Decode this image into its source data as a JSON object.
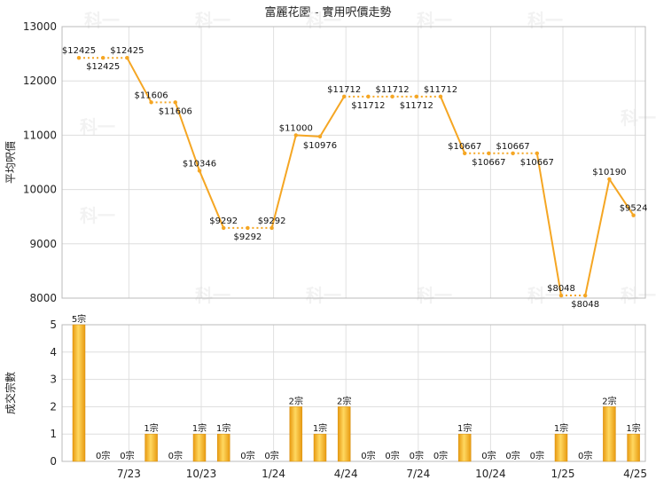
{
  "chart_data": [
    {
      "type": "line",
      "title": "富麗花園 - 實用呎價走勢",
      "ylabel": "平均呎價",
      "ylim": [
        8000,
        13000
      ],
      "yticks": [
        8000,
        9000,
        10000,
        11000,
        12000,
        13000
      ],
      "xticks": [
        "7/23",
        "10/23",
        "1/24",
        "4/24",
        "7/24",
        "10/24",
        "1/25",
        "4/25"
      ],
      "series": [
        {
          "values": [
            12425,
            12425,
            12425,
            11606,
            11606,
            10346,
            9292,
            9292,
            9292,
            11000,
            10976,
            11712,
            11712,
            11712,
            11712,
            11712,
            10667,
            10667,
            10667,
            10667,
            8048,
            8048,
            10190,
            9524
          ],
          "labels": [
            "$12425",
            "$12425",
            "$12425",
            "$11606",
            "$11606",
            "$10346",
            "$9292",
            "$9292",
            "$9292",
            "$11000",
            "$10976",
            "$11712",
            "$11712",
            "$11712",
            "$11712",
            "$11712",
            "$10667",
            "$10667",
            "$10667",
            "$10667",
            "$8048",
            "$8048",
            "$10190",
            "$9524"
          ]
        }
      ],
      "grid": true,
      "line_color": "#f5a623"
    },
    {
      "type": "bar",
      "ylabel": "成交宗數",
      "ylim": [
        0,
        5
      ],
      "yticks": [
        0,
        1,
        2,
        3,
        4,
        5
      ],
      "xticks": [
        "7/23",
        "10/23",
        "1/24",
        "4/24",
        "7/24",
        "10/24",
        "1/25",
        "4/25"
      ],
      "values": [
        5,
        0,
        0,
        1,
        0,
        1,
        1,
        0,
        0,
        2,
        1,
        2,
        0,
        0,
        0,
        0,
        1,
        0,
        0,
        0,
        1,
        0,
        2,
        1
      ],
      "labels": [
        "5宗",
        "0宗",
        "0宗",
        "1宗",
        "0宗",
        "1宗",
        "1宗",
        "0宗",
        "0宗",
        "2宗",
        "1宗",
        "2宗",
        "0宗",
        "0宗",
        "0宗",
        "0宗",
        "1宗",
        "0宗",
        "0宗",
        "0宗",
        "1宗",
        "0宗",
        "2宗",
        "1宗"
      ],
      "grid": true,
      "bar_color": "#f5b020"
    }
  ],
  "watermark": "科一"
}
